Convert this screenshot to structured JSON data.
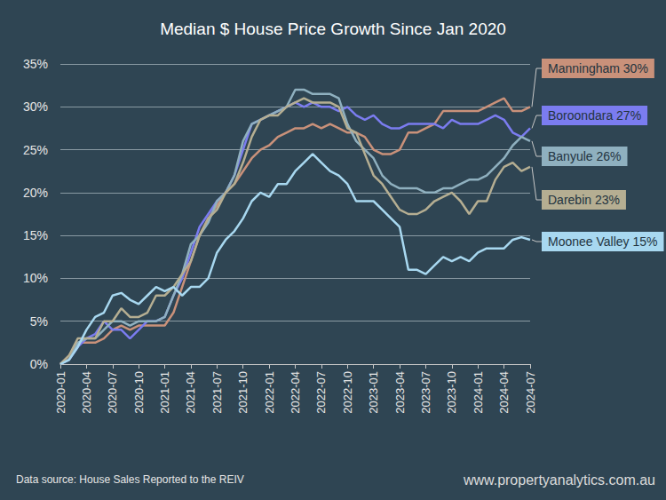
{
  "chart_data": {
    "type": "line",
    "title": "Median $ House Price Growth Since Jan 2020",
    "categories": [
      "2020-01",
      null,
      null,
      "2020-04",
      null,
      null,
      "2020-07",
      null,
      null,
      "2020-10",
      null,
      null,
      "2021-01",
      null,
      null,
      "2021-04",
      null,
      null,
      "2021-07",
      null,
      null,
      "2021-10",
      null,
      null,
      "2022-01",
      null,
      null,
      "2022-04",
      null,
      null,
      "2022-07",
      null,
      null,
      "2022-10",
      null,
      null,
      "2023-01",
      null,
      null,
      "2023-04",
      null,
      null,
      "2023-07",
      null,
      null,
      "2023-10",
      null,
      null,
      "2024-01",
      null,
      null,
      "2024-04",
      null,
      null,
      "2024-07"
    ],
    "series": [
      {
        "name": "Manningham 30%",
        "color": "#c9917a",
        "values": [
          0,
          1,
          2.5,
          2.5,
          2.5,
          3,
          4,
          4.5,
          4,
          4.5,
          4.5,
          4.5,
          4.5,
          6,
          9,
          12,
          15,
          17,
          18.5,
          20,
          21,
          22.5,
          24,
          25,
          25.5,
          26.5,
          27,
          27.5,
          27.5,
          28,
          27.5,
          28,
          27.5,
          27,
          27,
          26.5,
          25,
          24.5,
          24.5,
          25,
          27,
          27,
          27.5,
          28,
          29.5,
          29.5,
          29.5,
          29.5,
          29.5,
          30,
          30.5,
          31,
          29.5,
          29.5,
          30
        ]
      },
      {
        "name": "Boroondara 27%",
        "color": "#7b7cf0",
        "values": [
          0,
          0.5,
          2,
          3,
          3.5,
          5,
          4,
          4,
          3,
          4,
          5,
          5,
          5.5,
          8,
          10,
          13,
          16,
          17.5,
          19,
          20,
          22,
          25,
          28,
          28.5,
          29,
          29.5,
          30,
          30.5,
          30,
          30.5,
          30,
          30,
          29.5,
          30,
          29,
          28.5,
          29,
          28,
          27.5,
          27.5,
          28,
          28,
          28,
          28,
          27.5,
          28.5,
          28,
          28,
          28,
          28.5,
          29,
          28.5,
          27,
          26.5,
          27.5
        ]
      },
      {
        "name": "Banyule 26%",
        "color": "#8fb0bf",
        "values": [
          0,
          0.5,
          2.5,
          3,
          3,
          4,
          5,
          5,
          4.5,
          5,
          5,
          5,
          5.5,
          8,
          10.5,
          14,
          15,
          16.5,
          19,
          20,
          22,
          26,
          28,
          28.5,
          29,
          29.5,
          30,
          32,
          32,
          31.5,
          31.5,
          31.5,
          31,
          28,
          26,
          25,
          24,
          22,
          21,
          20.5,
          20.5,
          20.5,
          20,
          20,
          20.5,
          20.5,
          21,
          21.5,
          21.5,
          22,
          23,
          24,
          25.5,
          26.5,
          26
        ]
      },
      {
        "name": "Darebin 23%",
        "color": "#b5ae92",
        "values": [
          0,
          1,
          3,
          3,
          3,
          5,
          5,
          6.5,
          5.5,
          5.5,
          6,
          8,
          8,
          9,
          10.5,
          12,
          15,
          17,
          18,
          20,
          21,
          23.5,
          26.5,
          28.5,
          29,
          29,
          30,
          30.5,
          31,
          30.5,
          30.5,
          30.5,
          30,
          27.5,
          27,
          24.5,
          22,
          21,
          19.5,
          18,
          17.5,
          17.5,
          18,
          19,
          19.5,
          20,
          19,
          17.5,
          19,
          19,
          21.5,
          23,
          23.5,
          22.5,
          23
        ]
      },
      {
        "name": "Moonee Valley 15%",
        "color": "#a8d8f0",
        "values": [
          0,
          0.5,
          2,
          4,
          5.5,
          6,
          8,
          8.3,
          7.5,
          7,
          8,
          9,
          8.5,
          9,
          8,
          9,
          9,
          10,
          13,
          14.5,
          15.5,
          17,
          19,
          20,
          19.5,
          21,
          21,
          22.5,
          23.5,
          24.5,
          23.5,
          22.5,
          22,
          21,
          19,
          19,
          19,
          18,
          17,
          16,
          11,
          11,
          10.5,
          11.5,
          12.5,
          12,
          12.5,
          12,
          13,
          13.5,
          13.5,
          13.5,
          14.5,
          14.8,
          14.5
        ]
      }
    ],
    "ylim": [
      0,
      35
    ],
    "yticks": [
      {
        "value": 0,
        "label": "0%"
      },
      {
        "value": 5,
        "label": "5%"
      },
      {
        "value": 10,
        "label": "10%"
      },
      {
        "value": 15,
        "label": "15%"
      },
      {
        "value": 20,
        "label": "20%"
      },
      {
        "value": 25,
        "label": "25%"
      },
      {
        "value": 30,
        "label": "30%"
      },
      {
        "value": 35,
        "label": "35%"
      }
    ],
    "grid": true,
    "annotations": [
      "Data source: House Sales Reported to the REIV",
      "www.propertyanalytics.com.au"
    ]
  }
}
